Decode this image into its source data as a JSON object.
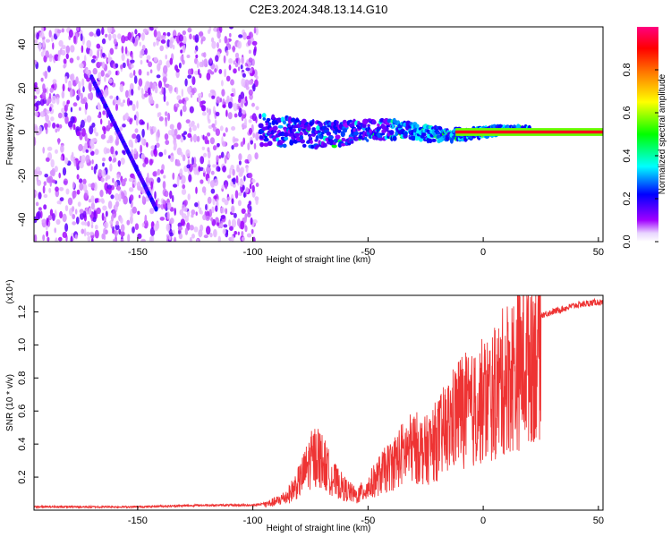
{
  "title": "C2E3.2024.348.13.14.G10",
  "chart_data": [
    {
      "type": "heatmap",
      "xlabel": "Height of straight line (km)",
      "ylabel": "Frequency (Hz)",
      "xlim": [
        -195,
        52
      ],
      "ylim": [
        -50,
        48
      ],
      "x_ticks": [
        -150,
        -100,
        -50,
        0,
        50
      ],
      "y_ticks": [
        -40,
        -20,
        0,
        20,
        40
      ],
      "colorbar": {
        "label": "Normalized spectral amplitude",
        "range": [
          0,
          1
        ],
        "ticks": [
          "0.0",
          "0.2",
          "0.4",
          "0.6",
          "0.8"
        ],
        "colors": [
          "#ffffff",
          "#a000ff",
          "#0000ff",
          "#00ffff",
          "#00ff00",
          "#ffff00",
          "#ff8000",
          "#ff0000",
          "#ff0080"
        ]
      },
      "features": {
        "noise_region_x": [
          -195,
          -98
        ],
        "carrier_frequency_hz": 0,
        "carrier_start_x": -97,
        "diagonal_line": {
          "x": [
            -170,
            -142
          ],
          "y": [
            25,
            -35
          ]
        }
      }
    },
    {
      "type": "line",
      "xlabel": "Height of straight line (km)",
      "ylabel": "SNR (10 * v/v)",
      "scale_label": "(x10⁴)",
      "xlim": [
        -195,
        52
      ],
      "ylim": [
        0,
        1.3
      ],
      "x_ticks": [
        -150,
        -100,
        -50,
        0,
        50
      ],
      "y_ticks": [
        "0.2",
        "0.4",
        "0.6",
        "0.8",
        "1.0",
        "1.2"
      ],
      "series_color": "#ee3333",
      "series": [
        {
          "name": "SNR",
          "x": [
            -195,
            -150,
            -120,
            -100,
            -95,
            -90,
            -85,
            -80,
            -75,
            -72,
            -70,
            -65,
            -60,
            -55,
            -50,
            -45,
            -40,
            -35,
            -30,
            -25,
            -20,
            -15,
            -10,
            -5,
            0,
            5,
            10,
            15,
            20,
            25,
            30,
            35,
            40,
            45,
            50,
            52
          ],
          "y": [
            0.02,
            0.02,
            0.03,
            0.03,
            0.04,
            0.06,
            0.1,
            0.2,
            0.35,
            0.4,
            0.35,
            0.22,
            0.15,
            0.1,
            0.16,
            0.25,
            0.32,
            0.4,
            0.45,
            0.42,
            0.5,
            0.6,
            0.72,
            0.7,
            0.78,
            0.82,
            0.95,
            1.0,
            1.12,
            1.18,
            1.2,
            1.22,
            1.24,
            1.25,
            1.26,
            1.25
          ]
        }
      ]
    }
  ]
}
